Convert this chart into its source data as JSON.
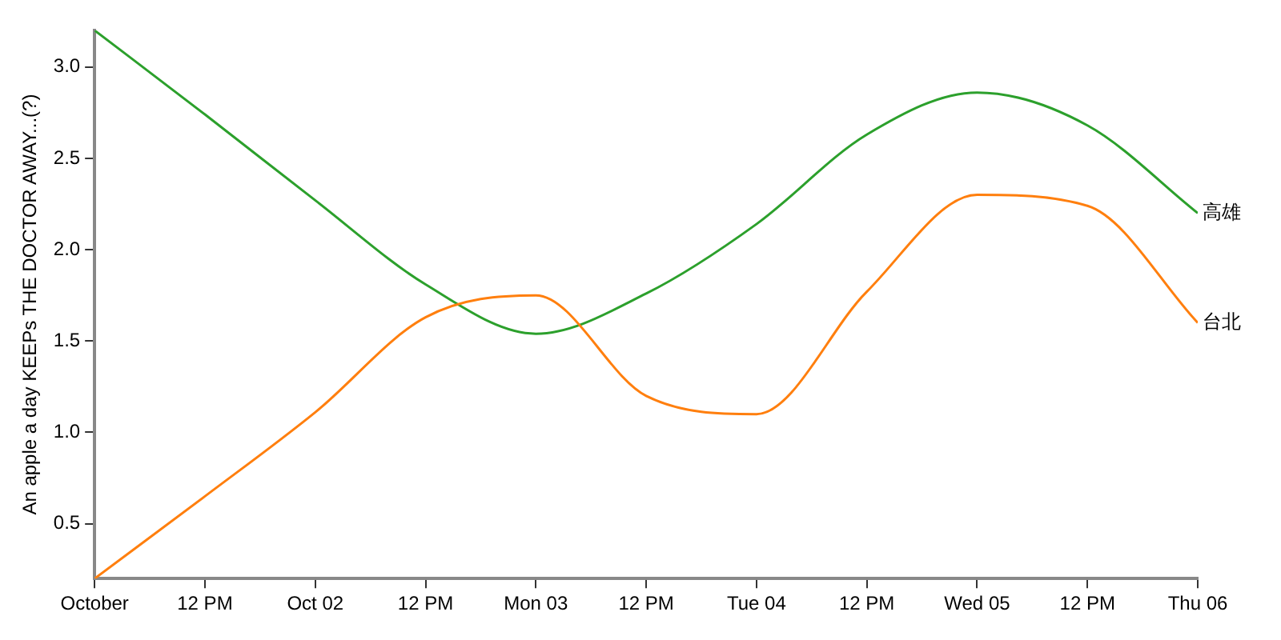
{
  "chart_data": {
    "type": "line",
    "ylabel": "An apple a day KEEPs THE DOCTOR AWAY...(?)",
    "x": [
      "--10-01T00:00",
      "--10-01T12:00",
      "--10-02T00:00",
      "--10-02T12:00",
      "--10-03T00:00",
      "--10-03T12:00",
      "--10-04T00:00",
      "--10-04T12:00",
      "--10-05T00:00",
      "--10-05T12:00",
      "--10-06T00:00"
    ],
    "series": [
      {
        "name": "台北",
        "color": "#ff7f0e",
        "values": [
          0.2,
          0.65,
          1.11,
          1.63,
          1.75,
          1.2,
          1.1,
          1.77,
          2.3,
          2.24,
          1.6
        ]
      },
      {
        "name": "高雄",
        "color": "#2ca02c",
        "values": [
          3.2,
          2.74,
          2.27,
          1.81,
          1.54,
          1.76,
          2.14,
          2.63,
          2.86,
          2.68,
          2.2
        ]
      }
    ],
    "xlim": [
      "--10-01T00:00",
      "--10-06T00:00"
    ],
    "xticks": [
      {
        "value": "--10-01T00:00",
        "label": "October"
      },
      {
        "value": "--10-01T12:00",
        "label": "12 PM"
      },
      {
        "value": "--10-02T00:00",
        "label": "Oct 02"
      },
      {
        "value": "--10-02T12:00",
        "label": "12 PM"
      },
      {
        "value": "--10-03T00:00",
        "label": "Mon 03"
      },
      {
        "value": "--10-03T12:00",
        "label": "12 PM"
      },
      {
        "value": "--10-04T00:00",
        "label": "Tue 04"
      },
      {
        "value": "--10-04T12:00",
        "label": "12 PM"
      },
      {
        "value": "--10-05T00:00",
        "label": "Wed 05"
      },
      {
        "value": "--10-05T12:00",
        "label": "12 PM"
      },
      {
        "value": "--10-06T00:00",
        "label": "Thu 06"
      }
    ],
    "ylim": [
      0.2,
      3.2
    ],
    "yticks": [
      {
        "value": 0.5,
        "label": "0.5"
      },
      {
        "value": 1,
        "label": "1.0"
      },
      {
        "value": 1.5,
        "label": "1.5"
      },
      {
        "value": 2,
        "label": "2.0"
      },
      {
        "value": 2.5,
        "label": "2.5"
      },
      {
        "value": 3,
        "label": "3.0"
      }
    ],
    "legend": false,
    "grid": false,
    "marker": "none",
    "line_style": "solid"
  }
}
